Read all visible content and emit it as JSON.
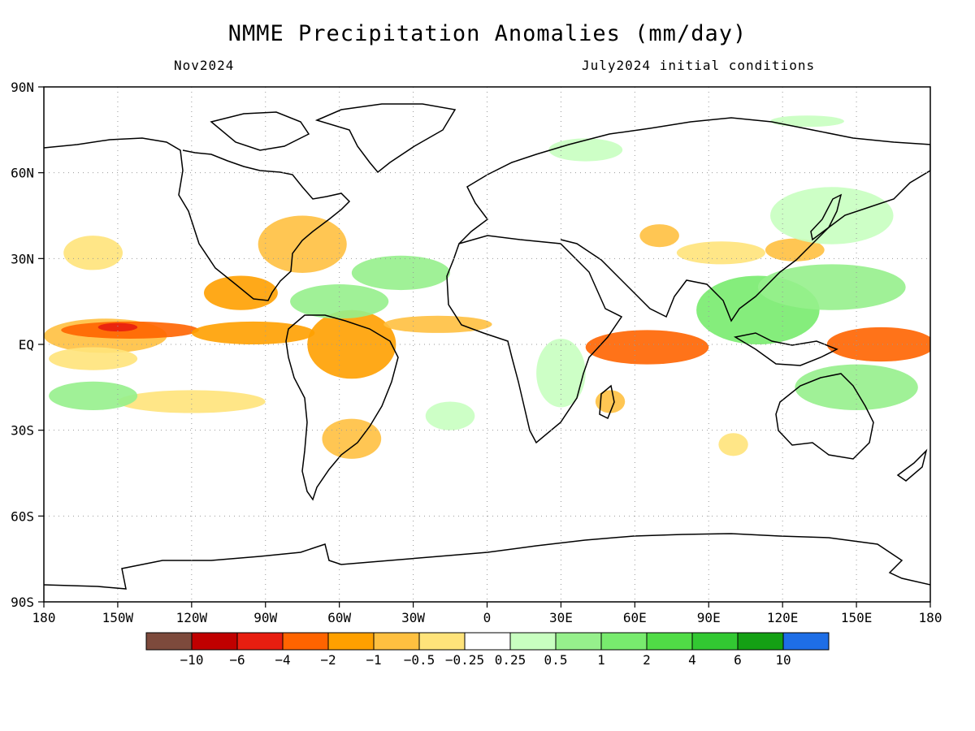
{
  "title": "NMME Precipitation Anomalies (mm/day)",
  "subtitle_left": "Nov2024",
  "subtitle_right": "July2024 initial conditions",
  "map": {
    "lon_range": [
      -180,
      180
    ],
    "lat_range": [
      -90,
      90
    ],
    "lon_labels": [
      "180",
      "150W",
      "120W",
      "90W",
      "60W",
      "30W",
      "0",
      "30E",
      "60E",
      "90E",
      "120E",
      "150E",
      "180"
    ],
    "lat_labels": [
      "90N",
      "60N",
      "30N",
      "EQ",
      "30S",
      "60S",
      "90S"
    ],
    "grid": "dotted"
  },
  "colorbar": {
    "colors": [
      "#7d4a3c",
      "#c00000",
      "#e81e10",
      "#ff6400",
      "#ffa000",
      "#ffc040",
      "#ffe37a",
      "#ffffff",
      "#c8ffc0",
      "#96f08c",
      "#78eb6e",
      "#50dc46",
      "#32c832",
      "#14a014",
      "#1e6ee6"
    ],
    "labels": [
      "−10",
      "−6",
      "−4",
      "−2",
      "−1",
      "−0.5",
      "−0.25",
      "0.25",
      "0.5",
      "1",
      "2",
      "4",
      "6",
      "10"
    ]
  },
  "anomalies": [
    {
      "lon": -155,
      "lat": 3,
      "rx": 25,
      "ry": 6,
      "color": "#ffc040"
    },
    {
      "lon": -145,
      "lat": 5,
      "rx": 28,
      "ry": 3,
      "color": "#ff6400"
    },
    {
      "lon": -150,
      "lat": 6,
      "rx": 8,
      "ry": 1.5,
      "color": "#e81e10"
    },
    {
      "lon": -95,
      "lat": 4,
      "rx": 25,
      "ry": 4,
      "color": "#ffa000"
    },
    {
      "lon": -160,
      "lat": -5,
      "rx": 18,
      "ry": 4,
      "color": "#ffe37a"
    },
    {
      "lon": -120,
      "lat": -20,
      "rx": 30,
      "ry": 4,
      "color": "#ffe37a"
    },
    {
      "lon": -100,
      "lat": 18,
      "rx": 15,
      "ry": 6,
      "color": "#ffa000"
    },
    {
      "lon": -160,
      "lat": 32,
      "rx": 12,
      "ry": 6,
      "color": "#ffe37a"
    },
    {
      "lon": -75,
      "lat": 35,
      "rx": 18,
      "ry": 10,
      "color": "#ffc040"
    },
    {
      "lon": -55,
      "lat": 0,
      "rx": 18,
      "ry": 12,
      "color": "#ffa000"
    },
    {
      "lon": -20,
      "lat": 7,
      "rx": 22,
      "ry": 3,
      "color": "#ffc040"
    },
    {
      "lon": -55,
      "lat": -33,
      "rx": 12,
      "ry": 7,
      "color": "#ffc040"
    },
    {
      "lon": 65,
      "lat": -1,
      "rx": 25,
      "ry": 6,
      "color": "#ff6400"
    },
    {
      "lon": 160,
      "lat": 0,
      "rx": 22,
      "ry": 6,
      "color": "#ff6400"
    },
    {
      "lon": 125,
      "lat": 33,
      "rx": 12,
      "ry": 4,
      "color": "#ffc040"
    },
    {
      "lon": 70,
      "lat": 38,
      "rx": 8,
      "ry": 4,
      "color": "#ffc040"
    },
    {
      "lon": 95,
      "lat": 32,
      "rx": 18,
      "ry": 4,
      "color": "#ffe37a"
    },
    {
      "lon": 50,
      "lat": -20,
      "rx": 6,
      "ry": 4,
      "color": "#ffc040"
    },
    {
      "lon": 100,
      "lat": -35,
      "rx": 6,
      "ry": 4,
      "color": "#ffe37a"
    },
    {
      "lon": -60,
      "lat": 15,
      "rx": 20,
      "ry": 6,
      "color": "#96f08c"
    },
    {
      "lon": -35,
      "lat": 25,
      "rx": 20,
      "ry": 6,
      "color": "#96f08c"
    },
    {
      "lon": 110,
      "lat": 12,
      "rx": 25,
      "ry": 12,
      "color": "#78eb6e"
    },
    {
      "lon": 140,
      "lat": 20,
      "rx": 30,
      "ry": 8,
      "color": "#96f08c"
    },
    {
      "lon": 150,
      "lat": -15,
      "rx": 25,
      "ry": 8,
      "color": "#96f08c"
    },
    {
      "lon": -160,
      "lat": -18,
      "rx": 18,
      "ry": 5,
      "color": "#96f08c"
    },
    {
      "lon": 30,
      "lat": -10,
      "rx": 10,
      "ry": 12,
      "color": "#c8ffc0"
    },
    {
      "lon": -15,
      "lat": -25,
      "rx": 10,
      "ry": 5,
      "color": "#c8ffc0"
    },
    {
      "lon": 140,
      "lat": 45,
      "rx": 25,
      "ry": 10,
      "color": "#c8ffc0"
    },
    {
      "lon": 40,
      "lat": 68,
      "rx": 15,
      "ry": 4,
      "color": "#c8ffc0"
    },
    {
      "lon": 130,
      "lat": 78,
      "rx": 15,
      "ry": 2,
      "color": "#c8ffc0"
    }
  ]
}
